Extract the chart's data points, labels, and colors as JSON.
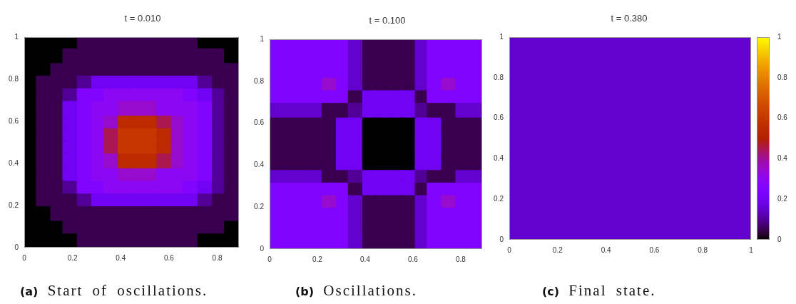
{
  "chart_data": [
    {
      "type": "scatter",
      "title": "t = 0.010",
      "marker": "square",
      "x": [
        0.03,
        0.08,
        0.14,
        0.19,
        0.25,
        0.31,
        0.36,
        0.42,
        0.47,
        0.53,
        0.58,
        0.64,
        0.69,
        0.75,
        0.81,
        0.86,
        0.03,
        0.08,
        0.14,
        0.19,
        0.25,
        0.31,
        0.36,
        0.42,
        0.47,
        0.53,
        0.58,
        0.64,
        0.69,
        0.75,
        0.81,
        0.86,
        0.03,
        0.08,
        0.14,
        0.19,
        0.25,
        0.31,
        0.36,
        0.42,
        0.47,
        0.53,
        0.58,
        0.64,
        0.69,
        0.75,
        0.81,
        0.86,
        0.03,
        0.08,
        0.14,
        0.19,
        0.25,
        0.31,
        0.36,
        0.42,
        0.47,
        0.53,
        0.58,
        0.64,
        0.69,
        0.75,
        0.81,
        0.86,
        0.03,
        0.08,
        0.14,
        0.19,
        0.25,
        0.31,
        0.36,
        0.42,
        0.47,
        0.53,
        0.58,
        0.64,
        0.69,
        0.75,
        0.81,
        0.86,
        0.03,
        0.08,
        0.14,
        0.19,
        0.25,
        0.31,
        0.36,
        0.42,
        0.47,
        0.53,
        0.58,
        0.64,
        0.69,
        0.75,
        0.81,
        0.86,
        0.03,
        0.08,
        0.14,
        0.19,
        0.25,
        0.31,
        0.36,
        0.42,
        0.47,
        0.53,
        0.58,
        0.64,
        0.69,
        0.75,
        0.81,
        0.86,
        0.03,
        0.08,
        0.14,
        0.19,
        0.25,
        0.31,
        0.36,
        0.42,
        0.47,
        0.53,
        0.58,
        0.64,
        0.69,
        0.75,
        0.81,
        0.86,
        0.03,
        0.08,
        0.14,
        0.19,
        0.25,
        0.31,
        0.36,
        0.42,
        0.47,
        0.53,
        0.58,
        0.64,
        0.69,
        0.75,
        0.81,
        0.86,
        0.03,
        0.08,
        0.14,
        0.19,
        0.25,
        0.31,
        0.36,
        0.42,
        0.47,
        0.53,
        0.58,
        0.64,
        0.69,
        0.75,
        0.81,
        0.86,
        0.03,
        0.08,
        0.14,
        0.19,
        0.25,
        0.31,
        0.36,
        0.42,
        0.47,
        0.53,
        0.58,
        0.64,
        0.69,
        0.75,
        0.81,
        0.86,
        0.03,
        0.08,
        0.14,
        0.19,
        0.25,
        0.31,
        0.36,
        0.42,
        0.47,
        0.53,
        0.58,
        0.64,
        0.69,
        0.75,
        0.81,
        0.86,
        0.03,
        0.08,
        0.14,
        0.19,
        0.25,
        0.31,
        0.36,
        0.42,
        0.47,
        0.53,
        0.58,
        0.64,
        0.69,
        0.75,
        0.81,
        0.86,
        0.03,
        0.08,
        0.14,
        0.19,
        0.25,
        0.31,
        0.36,
        0.42,
        0.47,
        0.53,
        0.58,
        0.64,
        0.69,
        0.75,
        0.81,
        0.86,
        0.03,
        0.08,
        0.14,
        0.19,
        0.25,
        0.31,
        0.36,
        0.42,
        0.47,
        0.53,
        0.58,
        0.64,
        0.69,
        0.75,
        0.81,
        0.86,
        0.03,
        0.08,
        0.14,
        0.19,
        0.25,
        0.31,
        0.36,
        0.42,
        0.47,
        0.53,
        0.58,
        0.64,
        0.69,
        0.75,
        0.81,
        0.86
      ],
      "values": [
        0.97,
        0.97,
        0.97,
        0.97,
        0.97,
        0.97,
        0.97,
        0.97,
        0.97,
        0.97,
        0.97,
        0.97,
        0.97,
        0.97,
        0.97,
        0.97,
        0.91,
        0.91,
        0.91,
        0.91,
        0.91,
        0.91,
        0.91,
        0.91,
        0.91,
        0.91,
        0.91,
        0.91,
        0.91,
        0.91,
        0.91,
        0.91,
        0.84,
        0.84,
        0.84,
        0.84,
        0.84,
        0.84,
        0.84,
        0.84,
        0.84,
        0.84,
        0.84,
        0.84,
        0.84,
        0.84,
        0.84,
        0.84,
        0.78,
        0.78,
        0.78,
        0.78,
        0.78,
        0.78,
        0.78,
        0.78,
        0.78,
        0.78,
        0.78,
        0.78,
        0.78,
        0.78,
        0.78,
        0.78,
        0.72,
        0.72,
        0.72,
        0.72,
        0.72,
        0.72,
        0.72,
        0.72,
        0.72,
        0.72,
        0.72,
        0.72,
        0.72,
        0.72,
        0.72,
        0.72,
        0.66,
        0.66,
        0.66,
        0.66,
        0.66,
        0.66,
        0.66,
        0.66,
        0.66,
        0.66,
        0.66,
        0.66,
        0.66,
        0.66,
        0.66,
        0.66,
        0.59,
        0.59,
        0.59,
        0.59,
        0.59,
        0.59,
        0.59,
        0.59,
        0.59,
        0.59,
        0.59,
        0.59,
        0.59,
        0.59,
        0.59,
        0.59,
        0.53,
        0.53,
        0.53,
        0.53,
        0.53,
        0.53,
        0.53,
        0.53,
        0.53,
        0.53,
        0.53,
        0.53,
        0.53,
        0.53,
        0.53,
        0.53,
        0.47,
        0.47,
        0.47,
        0.47,
        0.47,
        0.47,
        0.47,
        0.47,
        0.47,
        0.47,
        0.47,
        0.47,
        0.47,
        0.47,
        0.47,
        0.47,
        0.41,
        0.41,
        0.41,
        0.41,
        0.41,
        0.41,
        0.41,
        0.41,
        0.41,
        0.41,
        0.41,
        0.41,
        0.41,
        0.41,
        0.41,
        0.41,
        0.34,
        0.34,
        0.34,
        0.34,
        0.34,
        0.34,
        0.34,
        0.34,
        0.34,
        0.34,
        0.34,
        0.34,
        0.34,
        0.34,
        0.34,
        0.34,
        0.28,
        0.28,
        0.28,
        0.28,
        0.28,
        0.28,
        0.28,
        0.28,
        0.28,
        0.28,
        0.28,
        0.28,
        0.28,
        0.28,
        0.28,
        0.28,
        0.22,
        0.22,
        0.22,
        0.22,
        0.22,
        0.22,
        0.22,
        0.22,
        0.22,
        0.22,
        0.22,
        0.22,
        0.22,
        0.22,
        0.22,
        0.22,
        0.16,
        0.16,
        0.16,
        0.16,
        0.16,
        0.16,
        0.16,
        0.16,
        0.16,
        0.16,
        0.16,
        0.16,
        0.16,
        0.16,
        0.16,
        0.16,
        0.09,
        0.09,
        0.09,
        0.09,
        0.09,
        0.09,
        0.09,
        0.09,
        0.09,
        0.09,
        0.09,
        0.09,
        0.09,
        0.09,
        0.09,
        0.09,
        0.03,
        0.03,
        0.03,
        0.03,
        0.03,
        0.03,
        0.03,
        0.03,
        0.03,
        0.03,
        0.03,
        0.03,
        0.03,
        0.03,
        0.03,
        0.03
      ],
      "colors": [
        "#000000",
        "#000000",
        "#000000",
        "#000000",
        "#39004f",
        "#39004f",
        "#39004f",
        "#39004f",
        "#39004f",
        "#39004f",
        "#39004f",
        "#39004f",
        "#39004f",
        "#000000",
        "#000000",
        "#000000",
        "#000000",
        "#000000",
        "#000000",
        "#39004f",
        "#39004f",
        "#39004f",
        "#39004f",
        "#39004f",
        "#39004f",
        "#39004f",
        "#39004f",
        "#39004f",
        "#39004f",
        "#39004f",
        "#39004f",
        "#000000",
        "#000000",
        "#000000",
        "#39004f",
        "#39004f",
        "#39004f",
        "#39004f",
        "#39004f",
        "#39004f",
        "#39004f",
        "#39004f",
        "#39004f",
        "#39004f",
        "#39004f",
        "#39004f",
        "#39004f",
        "#39004f",
        "#000000",
        "#39004f",
        "#39004f",
        "#39004f",
        "#510096",
        "#7202f3",
        "#7202f3",
        "#7202f3",
        "#7202f3",
        "#7202f3",
        "#7202f3",
        "#7202f3",
        "#7202f3",
        "#510096",
        "#39004f",
        "#39004f",
        "#000000",
        "#39004f",
        "#39004f",
        "#510096",
        "#8004ff",
        "#8004ff",
        "#8c07f3",
        "#8c07f3",
        "#8c07f3",
        "#8c07f3",
        "#8c07f3",
        "#8c07f3",
        "#8004ff",
        "#7202f3",
        "#510096",
        "#39004f",
        "#000000",
        "#39004f",
        "#39004f",
        "#7202f3",
        "#8004ff",
        "#8c07f3",
        "#8c07f3",
        "#970bce",
        "#970bce",
        "#970bce",
        "#8c07f3",
        "#8c07f3",
        "#8c07f3",
        "#8004ff",
        "#510096",
        "#39004f",
        "#000000",
        "#39004f",
        "#39004f",
        "#7202f3",
        "#8004ff",
        "#8c07f3",
        "#970bce",
        "#bd2a00",
        "#bd2a00",
        "#bd2a00",
        "#ab174f",
        "#970bce",
        "#8c07f3",
        "#8004ff",
        "#510096",
        "#39004f",
        "#000000",
        "#39004f",
        "#39004f",
        "#7202f3",
        "#8004ff",
        "#8c07f3",
        "#ab174f",
        "#c63700",
        "#c63700",
        "#c63700",
        "#bd2a00",
        "#970bce",
        "#8c07f3",
        "#8004ff",
        "#510096",
        "#39004f",
        "#000000",
        "#39004f",
        "#39004f",
        "#7202f3",
        "#8004ff",
        "#8c07f3",
        "#ab174f",
        "#c63700",
        "#c63700",
        "#c63700",
        "#bd2a00",
        "#970bce",
        "#8c07f3",
        "#8004ff",
        "#510096",
        "#39004f",
        "#000000",
        "#39004f",
        "#39004f",
        "#7202f3",
        "#8004ff",
        "#8c07f3",
        "#970bce",
        "#bd2a00",
        "#bd2a00",
        "#bd2a00",
        "#ab174f",
        "#970bce",
        "#8c07f3",
        "#8004ff",
        "#510096",
        "#39004f",
        "#000000",
        "#39004f",
        "#39004f",
        "#7202f3",
        "#8004ff",
        "#8c07f3",
        "#8c07f3",
        "#970bce",
        "#970bce",
        "#970bce",
        "#8c07f3",
        "#8c07f3",
        "#8c07f3",
        "#8004ff",
        "#510096",
        "#39004f",
        "#000000",
        "#39004f",
        "#39004f",
        "#510096",
        "#8004ff",
        "#8004ff",
        "#8c07f3",
        "#8c07f3",
        "#8c07f3",
        "#8c07f3",
        "#8c07f3",
        "#8c07f3",
        "#8004ff",
        "#7202f3",
        "#510096",
        "#39004f",
        "#000000",
        "#39004f",
        "#39004f",
        "#39004f",
        "#510096",
        "#7202f3",
        "#7202f3",
        "#7202f3",
        "#7202f3",
        "#7202f3",
        "#7202f3",
        "#7202f3",
        "#7202f3",
        "#510096",
        "#39004f",
        "#39004f",
        "#000000",
        "#000000",
        "#39004f",
        "#39004f",
        "#39004f",
        "#39004f",
        "#39004f",
        "#39004f",
        "#39004f",
        "#39004f",
        "#39004f",
        "#39004f",
        "#39004f",
        "#39004f",
        "#39004f",
        "#39004f",
        "#000000",
        "#000000",
        "#000000",
        "#39004f",
        "#39004f",
        "#39004f",
        "#39004f",
        "#39004f",
        "#39004f",
        "#39004f",
        "#39004f",
        "#39004f",
        "#39004f",
        "#39004f",
        "#39004f",
        "#000000",
        "#000000",
        "#000000",
        "#000000",
        "#000000",
        "#39004f",
        "#39004f",
        "#39004f",
        "#39004f",
        "#39004f",
        "#39004f",
        "#39004f",
        "#39004f",
        "#39004f",
        "#000000",
        "#000000",
        "#000000"
      ],
      "xlim": [
        0,
        0.89
      ],
      "xticks": [
        0,
        0.2,
        0.4,
        0.6,
        0.8
      ],
      "ylim": [
        0,
        1
      ],
      "yticks": [
        0,
        0.2,
        0.4,
        0.6,
        0.8,
        1
      ],
      "annotations": [
        "(a) Start of oscillations."
      ]
    },
    {
      "type": "scatter",
      "title": "t = 0.100",
      "marker": "square",
      "x": [
        0.03,
        0.08,
        0.14,
        0.19,
        0.25,
        0.31,
        0.36,
        0.42,
        0.47,
        0.53,
        0.58,
        0.64,
        0.69,
        0.75,
        0.81,
        0.86,
        0.03,
        0.08,
        0.14,
        0.19,
        0.25,
        0.31,
        0.36,
        0.42,
        0.47,
        0.53,
        0.58,
        0.64,
        0.69,
        0.75,
        0.81,
        0.86,
        0.03,
        0.08,
        0.14,
        0.19,
        0.25,
        0.31,
        0.36,
        0.42,
        0.47,
        0.53,
        0.58,
        0.64,
        0.69,
        0.75,
        0.81,
        0.86,
        0.03,
        0.08,
        0.14,
        0.19,
        0.25,
        0.31,
        0.36,
        0.42,
        0.47,
        0.53,
        0.58,
        0.64,
        0.69,
        0.75,
        0.81,
        0.86,
        0.03,
        0.08,
        0.14,
        0.19,
        0.25,
        0.31,
        0.36,
        0.42,
        0.47,
        0.53,
        0.58,
        0.64,
        0.69,
        0.75,
        0.81,
        0.86,
        0.03,
        0.08,
        0.14,
        0.19,
        0.25,
        0.31,
        0.36,
        0.42,
        0.47,
        0.53,
        0.58,
        0.64,
        0.69,
        0.75,
        0.81,
        0.86,
        0.03,
        0.08,
        0.14,
        0.19,
        0.25,
        0.31,
        0.36,
        0.42,
        0.47,
        0.53,
        0.58,
        0.64,
        0.69,
        0.75,
        0.81,
        0.86,
        0.03,
        0.08,
        0.14,
        0.19,
        0.25,
        0.31,
        0.36,
        0.42,
        0.47,
        0.53,
        0.58,
        0.64,
        0.69,
        0.75,
        0.81,
        0.86,
        0.03,
        0.08,
        0.14,
        0.19,
        0.25,
        0.31,
        0.36,
        0.42,
        0.47,
        0.53,
        0.58,
        0.64,
        0.69,
        0.75,
        0.81,
        0.86,
        0.03,
        0.08,
        0.14,
        0.19,
        0.25,
        0.31,
        0.36,
        0.42,
        0.47,
        0.53,
        0.58,
        0.64,
        0.69,
        0.75,
        0.81,
        0.86,
        0.03,
        0.08,
        0.14,
        0.19,
        0.25,
        0.31,
        0.36,
        0.42,
        0.47,
        0.53,
        0.58,
        0.64,
        0.69,
        0.75,
        0.81,
        0.86,
        0.03,
        0.08,
        0.14,
        0.19,
        0.25,
        0.31,
        0.36,
        0.42,
        0.47,
        0.53,
        0.58,
        0.64,
        0.69,
        0.75,
        0.81,
        0.86,
        0.03,
        0.08,
        0.14,
        0.19,
        0.25,
        0.31,
        0.36,
        0.42,
        0.47,
        0.53,
        0.58,
        0.64,
        0.69,
        0.75,
        0.81,
        0.86,
        0.03,
        0.08,
        0.14,
        0.19,
        0.25,
        0.31,
        0.36,
        0.42,
        0.47,
        0.53,
        0.58,
        0.64,
        0.69,
        0.75,
        0.81,
        0.86,
        0.03,
        0.08,
        0.14,
        0.19,
        0.25,
        0.31,
        0.36,
        0.42,
        0.47,
        0.53,
        0.58,
        0.64,
        0.69,
        0.75,
        0.81,
        0.86,
        0.03,
        0.08,
        0.14,
        0.19,
        0.25,
        0.31,
        0.36,
        0.42,
        0.47,
        0.53,
        0.58,
        0.64,
        0.69,
        0.75,
        0.81,
        0.86
      ],
      "values": [
        0.97,
        0.97,
        0.97,
        0.97,
        0.97,
        0.97,
        0.97,
        0.97,
        0.97,
        0.97,
        0.97,
        0.97,
        0.97,
        0.97,
        0.97,
        0.97,
        0.91,
        0.91,
        0.91,
        0.91,
        0.91,
        0.91,
        0.91,
        0.91,
        0.91,
        0.91,
        0.91,
        0.91,
        0.91,
        0.91,
        0.91,
        0.91,
        0.84,
        0.84,
        0.84,
        0.84,
        0.84,
        0.84,
        0.84,
        0.84,
        0.84,
        0.84,
        0.84,
        0.84,
        0.84,
        0.84,
        0.84,
        0.84,
        0.78,
        0.78,
        0.78,
        0.78,
        0.78,
        0.78,
        0.78,
        0.78,
        0.78,
        0.78,
        0.78,
        0.78,
        0.78,
        0.78,
        0.78,
        0.78,
        0.72,
        0.72,
        0.72,
        0.72,
        0.72,
        0.72,
        0.72,
        0.72,
        0.72,
        0.72,
        0.72,
        0.72,
        0.72,
        0.72,
        0.72,
        0.72,
        0.66,
        0.66,
        0.66,
        0.66,
        0.66,
        0.66,
        0.66,
        0.66,
        0.66,
        0.66,
        0.66,
        0.66,
        0.66,
        0.66,
        0.66,
        0.66,
        0.59,
        0.59,
        0.59,
        0.59,
        0.59,
        0.59,
        0.59,
        0.59,
        0.59,
        0.59,
        0.59,
        0.59,
        0.59,
        0.59,
        0.59,
        0.59,
        0.53,
        0.53,
        0.53,
        0.53,
        0.53,
        0.53,
        0.53,
        0.53,
        0.53,
        0.53,
        0.53,
        0.53,
        0.53,
        0.53,
        0.53,
        0.53,
        0.47,
        0.47,
        0.47,
        0.47,
        0.47,
        0.47,
        0.47,
        0.47,
        0.47,
        0.47,
        0.47,
        0.47,
        0.47,
        0.47,
        0.47,
        0.47,
        0.41,
        0.41,
        0.41,
        0.41,
        0.41,
        0.41,
        0.41,
        0.41,
        0.41,
        0.41,
        0.41,
        0.41,
        0.41,
        0.41,
        0.41,
        0.41,
        0.34,
        0.34,
        0.34,
        0.34,
        0.34,
        0.34,
        0.34,
        0.34,
        0.34,
        0.34,
        0.34,
        0.34,
        0.34,
        0.34,
        0.34,
        0.34,
        0.28,
        0.28,
        0.28,
        0.28,
        0.28,
        0.28,
        0.28,
        0.28,
        0.28,
        0.28,
        0.28,
        0.28,
        0.28,
        0.28,
        0.28,
        0.28,
        0.22,
        0.22,
        0.22,
        0.22,
        0.22,
        0.22,
        0.22,
        0.22,
        0.22,
        0.22,
        0.22,
        0.22,
        0.22,
        0.22,
        0.22,
        0.22,
        0.16,
        0.16,
        0.16,
        0.16,
        0.16,
        0.16,
        0.16,
        0.16,
        0.16,
        0.16,
        0.16,
        0.16,
        0.16,
        0.16,
        0.16,
        0.16,
        0.09,
        0.09,
        0.09,
        0.09,
        0.09,
        0.09,
        0.09,
        0.09,
        0.09,
        0.09,
        0.09,
        0.09,
        0.09,
        0.09,
        0.09,
        0.09,
        0.03,
        0.03,
        0.03,
        0.03,
        0.03,
        0.03,
        0.03,
        0.03,
        0.03,
        0.03,
        0.03,
        0.03,
        0.03,
        0.03,
        0.03,
        0.03
      ],
      "colors": [
        "#8004ff",
        "#8004ff",
        "#8004ff",
        "#8004ff",
        "#8004ff",
        "#8004ff",
        "#6301ce",
        "#39004f",
        "#39004f",
        "#39004f",
        "#39004f",
        "#6301ce",
        "#8004ff",
        "#8004ff",
        "#8004ff",
        "#8004ff",
        "#8004ff",
        "#8004ff",
        "#8004ff",
        "#8004ff",
        "#8004ff",
        "#8004ff",
        "#6301ce",
        "#39004f",
        "#39004f",
        "#39004f",
        "#39004f",
        "#6301ce",
        "#8004ff",
        "#8004ff",
        "#8004ff",
        "#8004ff",
        "#8004ff",
        "#8004ff",
        "#8004ff",
        "#8004ff",
        "#8004ff",
        "#8004ff",
        "#6301ce",
        "#39004f",
        "#39004f",
        "#39004f",
        "#39004f",
        "#6301ce",
        "#8004ff",
        "#8004ff",
        "#8004ff",
        "#8004ff",
        "#8004ff",
        "#8004ff",
        "#8004ff",
        "#8004ff",
        "#970bce",
        "#8004ff",
        "#6301ce",
        "#39004f",
        "#39004f",
        "#39004f",
        "#39004f",
        "#6301ce",
        "#8004ff",
        "#970bce",
        "#8004ff",
        "#8004ff",
        "#8004ff",
        "#8004ff",
        "#8004ff",
        "#8004ff",
        "#8004ff",
        "#8004ff",
        "#39004f",
        "#7202f3",
        "#7202f3",
        "#7202f3",
        "#7202f3",
        "#39004f",
        "#8004ff",
        "#8004ff",
        "#8004ff",
        "#8004ff",
        "#6301ce",
        "#6301ce",
        "#6301ce",
        "#6301ce",
        "#39004f",
        "#39004f",
        "#510096",
        "#7202f3",
        "#7202f3",
        "#7202f3",
        "#7202f3",
        "#510096",
        "#39004f",
        "#39004f",
        "#6301ce",
        "#6301ce",
        "#39004f",
        "#39004f",
        "#39004f",
        "#39004f",
        "#39004f",
        "#7202f3",
        "#7202f3",
        "#000000",
        "#000000",
        "#000000",
        "#000000",
        "#7202f3",
        "#7202f3",
        "#39004f",
        "#39004f",
        "#39004f",
        "#39004f",
        "#39004f",
        "#39004f",
        "#39004f",
        "#39004f",
        "#7202f3",
        "#7202f3",
        "#000000",
        "#000000",
        "#000000",
        "#000000",
        "#7202f3",
        "#7202f3",
        "#39004f",
        "#39004f",
        "#39004f",
        "#39004f",
        "#39004f",
        "#39004f",
        "#39004f",
        "#39004f",
        "#7202f3",
        "#7202f3",
        "#000000",
        "#000000",
        "#000000",
        "#000000",
        "#7202f3",
        "#7202f3",
        "#39004f",
        "#39004f",
        "#39004f",
        "#39004f",
        "#39004f",
        "#39004f",
        "#39004f",
        "#39004f",
        "#7202f3",
        "#7202f3",
        "#000000",
        "#000000",
        "#000000",
        "#000000",
        "#7202f3",
        "#7202f3",
        "#39004f",
        "#39004f",
        "#39004f",
        "#6301ce",
        "#6301ce",
        "#6301ce",
        "#6301ce",
        "#39004f",
        "#39004f",
        "#510096",
        "#7202f3",
        "#7202f3",
        "#7202f3",
        "#7202f3",
        "#510096",
        "#39004f",
        "#39004f",
        "#6301ce",
        "#6301ce",
        "#8004ff",
        "#8004ff",
        "#8004ff",
        "#8004ff",
        "#8004ff",
        "#8004ff",
        "#39004f",
        "#7202f3",
        "#7202f3",
        "#7202f3",
        "#7202f3",
        "#39004f",
        "#8004ff",
        "#8004ff",
        "#8004ff",
        "#8004ff",
        "#8004ff",
        "#8004ff",
        "#8004ff",
        "#8004ff",
        "#970bce",
        "#8004ff",
        "#6301ce",
        "#39004f",
        "#39004f",
        "#39004f",
        "#39004f",
        "#6301ce",
        "#8004ff",
        "#970bce",
        "#8004ff",
        "#8004ff",
        "#8004ff",
        "#8004ff",
        "#8004ff",
        "#8004ff",
        "#8004ff",
        "#8004ff",
        "#6301ce",
        "#39004f",
        "#39004f",
        "#39004f",
        "#39004f",
        "#6301ce",
        "#8004ff",
        "#8004ff",
        "#8004ff",
        "#8004ff",
        "#8004ff",
        "#8004ff",
        "#8004ff",
        "#8004ff",
        "#8004ff",
        "#8004ff",
        "#6301ce",
        "#39004f",
        "#39004f",
        "#39004f",
        "#39004f",
        "#6301ce",
        "#8004ff",
        "#8004ff",
        "#8004ff",
        "#8004ff",
        "#8004ff",
        "#8004ff",
        "#8004ff",
        "#8004ff",
        "#8004ff",
        "#8004ff",
        "#6301ce",
        "#39004f",
        "#39004f",
        "#39004f",
        "#39004f",
        "#6301ce",
        "#8004ff",
        "#8004ff",
        "#8004ff",
        "#8004ff"
      ],
      "xlim": [
        0,
        0.89
      ],
      "xticks": [
        0,
        0.2,
        0.4,
        0.6,
        0.8
      ],
      "ylim": [
        0,
        1
      ],
      "yticks": [
        0,
        0.2,
        0.4,
        0.6,
        0.8,
        1
      ],
      "annotations": [
        "(b) Oscillations."
      ]
    },
    {
      "type": "scatter",
      "title": "t = 0.380",
      "marker": "square",
      "x": [
        0.03,
        0.09,
        0.16,
        0.22,
        0.28,
        0.34,
        0.41,
        0.47,
        0.53,
        0.59,
        0.66,
        0.72,
        0.78,
        0.84,
        0.91,
        0.97,
        0.03,
        0.09,
        0.16,
        0.22,
        0.28,
        0.34,
        0.41,
        0.47,
        0.53,
        0.59,
        0.66,
        0.72,
        0.78,
        0.84,
        0.91,
        0.97,
        0.03,
        0.09,
        0.16,
        0.22,
        0.28,
        0.34,
        0.41,
        0.47,
        0.53,
        0.59,
        0.66,
        0.72,
        0.78,
        0.84,
        0.91,
        0.97,
        0.03,
        0.09,
        0.16,
        0.22,
        0.28,
        0.34,
        0.41,
        0.47,
        0.53,
        0.59,
        0.66,
        0.72,
        0.78,
        0.84,
        0.91,
        0.97,
        0.03,
        0.09,
        0.16,
        0.22,
        0.28,
        0.34,
        0.41,
        0.47,
        0.53,
        0.59,
        0.66,
        0.72,
        0.78,
        0.84,
        0.91,
        0.97,
        0.03,
        0.09,
        0.16,
        0.22,
        0.28,
        0.34,
        0.41,
        0.47,
        0.53,
        0.59,
        0.66,
        0.72,
        0.78,
        0.84,
        0.91,
        0.97,
        0.03,
        0.09,
        0.16,
        0.22,
        0.28,
        0.34,
        0.41,
        0.47,
        0.53,
        0.59,
        0.66,
        0.72,
        0.78,
        0.84,
        0.91,
        0.97,
        0.03,
        0.09,
        0.16,
        0.22,
        0.28,
        0.34,
        0.41,
        0.47,
        0.53,
        0.59,
        0.66,
        0.72,
        0.78,
        0.84,
        0.91,
        0.97,
        0.03,
        0.09,
        0.16,
        0.22,
        0.28,
        0.34,
        0.41,
        0.47,
        0.53,
        0.59,
        0.66,
        0.72,
        0.78,
        0.84,
        0.91,
        0.97,
        0.03,
        0.09,
        0.16,
        0.22,
        0.28,
        0.34,
        0.41,
        0.47,
        0.53,
        0.59,
        0.66,
        0.72,
        0.78,
        0.84,
        0.91,
        0.97,
        0.03,
        0.09,
        0.16,
        0.22,
        0.28,
        0.34,
        0.41,
        0.47,
        0.53,
        0.59,
        0.66,
        0.72,
        0.78,
        0.84,
        0.91,
        0.97,
        0.03,
        0.09,
        0.16,
        0.22,
        0.28,
        0.34,
        0.41,
        0.47,
        0.53,
        0.59,
        0.66,
        0.72,
        0.78,
        0.84,
        0.91,
        0.97,
        0.03,
        0.09,
        0.16,
        0.22,
        0.28,
        0.34,
        0.41,
        0.47,
        0.53,
        0.59,
        0.66,
        0.72,
        0.78,
        0.84,
        0.91,
        0.97,
        0.03,
        0.09,
        0.16,
        0.22,
        0.28,
        0.34,
        0.41,
        0.47,
        0.53,
        0.59,
        0.66,
        0.72,
        0.78,
        0.84,
        0.91,
        0.97,
        0.03,
        0.09,
        0.16,
        0.22,
        0.28,
        0.34,
        0.41,
        0.47,
        0.53,
        0.59,
        0.66,
        0.72,
        0.78,
        0.84,
        0.91,
        0.97,
        0.03,
        0.09,
        0.16,
        0.22,
        0.28,
        0.34,
        0.41,
        0.47,
        0.53,
        0.59,
        0.66,
        0.72,
        0.78,
        0.84,
        0.91,
        0.97
      ],
      "values": [
        0.97,
        0.97,
        0.97,
        0.97,
        0.97,
        0.97,
        0.97,
        0.97,
        0.97,
        0.97,
        0.97,
        0.97,
        0.97,
        0.97,
        0.97,
        0.97,
        0.91,
        0.91,
        0.91,
        0.91,
        0.91,
        0.91,
        0.91,
        0.91,
        0.91,
        0.91,
        0.91,
        0.91,
        0.91,
        0.91,
        0.91,
        0.91,
        0.84,
        0.84,
        0.84,
        0.84,
        0.84,
        0.84,
        0.84,
        0.84,
        0.84,
        0.84,
        0.84,
        0.84,
        0.84,
        0.84,
        0.84,
        0.84,
        0.78,
        0.78,
        0.78,
        0.78,
        0.78,
        0.78,
        0.78,
        0.78,
        0.78,
        0.78,
        0.78,
        0.78,
        0.78,
        0.78,
        0.78,
        0.78,
        0.72,
        0.72,
        0.72,
        0.72,
        0.72,
        0.72,
        0.72,
        0.72,
        0.72,
        0.72,
        0.72,
        0.72,
        0.72,
        0.72,
        0.72,
        0.72,
        0.66,
        0.66,
        0.66,
        0.66,
        0.66,
        0.66,
        0.66,
        0.66,
        0.66,
        0.66,
        0.66,
        0.66,
        0.66,
        0.66,
        0.66,
        0.66,
        0.59,
        0.59,
        0.59,
        0.59,
        0.59,
        0.59,
        0.59,
        0.59,
        0.59,
        0.59,
        0.59,
        0.59,
        0.59,
        0.59,
        0.59,
        0.59,
        0.53,
        0.53,
        0.53,
        0.53,
        0.53,
        0.53,
        0.53,
        0.53,
        0.53,
        0.53,
        0.53,
        0.53,
        0.53,
        0.53,
        0.53,
        0.53,
        0.47,
        0.47,
        0.47,
        0.47,
        0.47,
        0.47,
        0.47,
        0.47,
        0.47,
        0.47,
        0.47,
        0.47,
        0.47,
        0.47,
        0.47,
        0.47,
        0.41,
        0.41,
        0.41,
        0.41,
        0.41,
        0.41,
        0.41,
        0.41,
        0.41,
        0.41,
        0.41,
        0.41,
        0.41,
        0.41,
        0.41,
        0.41,
        0.34,
        0.34,
        0.34,
        0.34,
        0.34,
        0.34,
        0.34,
        0.34,
        0.34,
        0.34,
        0.34,
        0.34,
        0.34,
        0.34,
        0.34,
        0.34,
        0.28,
        0.28,
        0.28,
        0.28,
        0.28,
        0.28,
        0.28,
        0.28,
        0.28,
        0.28,
        0.28,
        0.28,
        0.28,
        0.28,
        0.28,
        0.28,
        0.22,
        0.22,
        0.22,
        0.22,
        0.22,
        0.22,
        0.22,
        0.22,
        0.22,
        0.22,
        0.22,
        0.22,
        0.22,
        0.22,
        0.22,
        0.22,
        0.16,
        0.16,
        0.16,
        0.16,
        0.16,
        0.16,
        0.16,
        0.16,
        0.16,
        0.16,
        0.16,
        0.16,
        0.16,
        0.16,
        0.16,
        0.16,
        0.09,
        0.09,
        0.09,
        0.09,
        0.09,
        0.09,
        0.09,
        0.09,
        0.09,
        0.09,
        0.09,
        0.09,
        0.09,
        0.09,
        0.09,
        0.09,
        0.03,
        0.03,
        0.03,
        0.03,
        0.03,
        0.03,
        0.03,
        0.03,
        0.03,
        0.03,
        0.03,
        0.03,
        0.03,
        0.03,
        0.03,
        0.03
      ],
      "cvalues": [
        0.15,
        0.15,
        0.15,
        0.15,
        0.15,
        0.15,
        0.15,
        0.15,
        0.15,
        0.15,
        0.15,
        0.15,
        0.15,
        0.15,
        0.15,
        0.15,
        0.15,
        0.15,
        0.15,
        0.15,
        0.15,
        0.15,
        0.15,
        0.15,
        0.15,
        0.15,
        0.15,
        0.15,
        0.15,
        0.15,
        0.15,
        0.15,
        0.15,
        0.15,
        0.15,
        0.15,
        0.15,
        0.15,
        0.15,
        0.15,
        0.15,
        0.15,
        0.15,
        0.15,
        0.15,
        0.15,
        0.15,
        0.15,
        0.15,
        0.15,
        0.15,
        0.15,
        0.15,
        0.15,
        0.15,
        0.15,
        0.15,
        0.15,
        0.15,
        0.15,
        0.15,
        0.15,
        0.15,
        0.15,
        0.15,
        0.15,
        0.15,
        0.15,
        0.15,
        0.15,
        0.15,
        0.15,
        0.15,
        0.15,
        0.15,
        0.15,
        0.15,
        0.15,
        0.15,
        0.15,
        0.15,
        0.15,
        0.15,
        0.15,
        0.15,
        0.15,
        0.15,
        0.15,
        0.15,
        0.15,
        0.15,
        0.15,
        0.15,
        0.15,
        0.15,
        0.15,
        0.15,
        0.15,
        0.15,
        0.15,
        0.15,
        0.15,
        0.15,
        0.15,
        0.15,
        0.15,
        0.15,
        0.15,
        0.15,
        0.15,
        0.15,
        0.15,
        0.15,
        0.15,
        0.15,
        0.15,
        0.15,
        0.15,
        0.15,
        0.15,
        0.15,
        0.15,
        0.15,
        0.15,
        0.15,
        0.15,
        0.15,
        0.15,
        0.15,
        0.15,
        0.15,
        0.15,
        0.15,
        0.15,
        0.15,
        0.15,
        0.15,
        0.15,
        0.15,
        0.15,
        0.15,
        0.15,
        0.15,
        0.15,
        0.15,
        0.15,
        0.15,
        0.15,
        0.15,
        0.15,
        0.15,
        0.15,
        0.15,
        0.15,
        0.15,
        0.15,
        0.15,
        0.15,
        0.15,
        0.15,
        0.15,
        0.15,
        0.15,
        0.15,
        0.15,
        0.15,
        0.15,
        0.15,
        0.15,
        0.15,
        0.15,
        0.15,
        0.15,
        0.15,
        0.15,
        0.15,
        0.15,
        0.15,
        0.15,
        0.15,
        0.15,
        0.15,
        0.15,
        0.15,
        0.15,
        0.15,
        0.15,
        0.15,
        0.15,
        0.15,
        0.15,
        0.15,
        0.15,
        0.15,
        0.15,
        0.15,
        0.15,
        0.15,
        0.15,
        0.15,
        0.15,
        0.15,
        0.15,
        0.15,
        0.15,
        0.15,
        0.15,
        0.15,
        0.15,
        0.15,
        0.15,
        0.15,
        0.15,
        0.15,
        0.15,
        0.15,
        0.15,
        0.15,
        0.15,
        0.15,
        0.15,
        0.15,
        0.15,
        0.15,
        0.15,
        0.15,
        0.15,
        0.15,
        0.15,
        0.15,
        0.15,
        0.15,
        0.15,
        0.15,
        0.15,
        0.15,
        0.15,
        0.15,
        0.15,
        0.15,
        0.15,
        0.15,
        0.15,
        0.15,
        0.15,
        0.15,
        0.15,
        0.15,
        0.15,
        0.15,
        0.15,
        0.15,
        0.15,
        0.15,
        0.15,
        0.15
      ],
      "xlim": [
        0,
        1
      ],
      "xticks": [
        0,
        0.2,
        0.4,
        0.6,
        0.8,
        1
      ],
      "ylim": [
        0,
        1
      ],
      "yticks": [
        0,
        0.2,
        0.4,
        0.6,
        0.8,
        1
      ],
      "clim": [
        0,
        1
      ],
      "cticks": [
        0,
        0.2,
        0.4,
        0.6,
        0.8,
        1
      ],
      "annotations": [
        "(c) Final state."
      ]
    }
  ]
}
